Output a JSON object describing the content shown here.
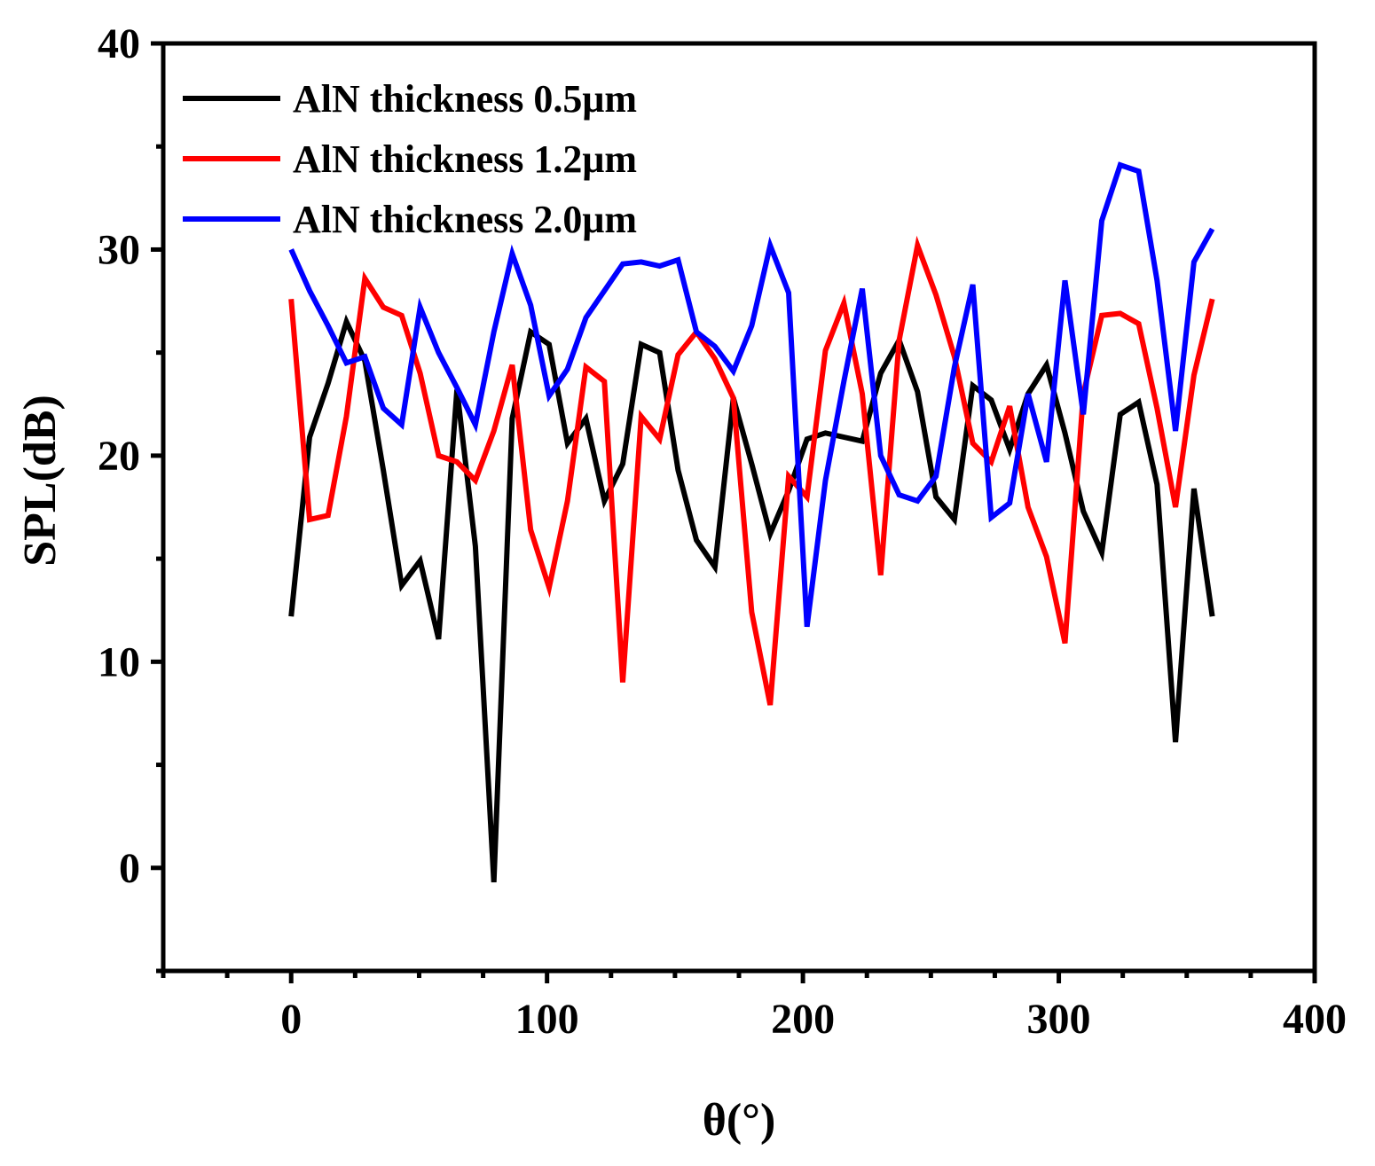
{
  "chart_data": {
    "type": "line",
    "title": "",
    "xlabel": "θ(°)",
    "ylabel": "SPL(dB)",
    "xlim": [
      -50,
      400
    ],
    "ylim": [
      -5,
      40
    ],
    "xticks": [
      0,
      100,
      200,
      300,
      400
    ],
    "yticks": [
      0,
      10,
      20,
      30,
      40
    ],
    "x_tick_labels": [
      "0",
      "100",
      "200",
      "300",
      "400"
    ],
    "y_tick_labels": [
      "0",
      "10",
      "20",
      "30",
      "40"
    ],
    "grid": false,
    "legend_position": "top-left",
    "x": [
      0,
      7.2,
      14.4,
      21.6,
      28.8,
      36,
      43.2,
      50.4,
      57.6,
      64.8,
      72,
      79.2,
      86.4,
      93.6,
      100.8,
      108,
      115.2,
      122.4,
      129.6,
      136.8,
      144,
      151.2,
      158.4,
      165.6,
      172.8,
      180,
      187.2,
      194.4,
      201.6,
      208.8,
      216,
      223.2,
      230.4,
      237.6,
      244.8,
      252,
      259.2,
      266.4,
      273.6,
      280.8,
      288,
      295.2,
      302.4,
      309.6,
      316.8,
      324,
      331.2,
      338.4,
      345.6,
      352.8,
      360
    ],
    "series": [
      {
        "name": "AlN thickness 0.5μm",
        "color": "#000000",
        "values": [
          12.2,
          20.9,
          23.5,
          26.5,
          24.6,
          19.3,
          13.7,
          14.9,
          11.1,
          23.2,
          15.6,
          -0.7,
          21.8,
          26.0,
          25.4,
          20.6,
          21.8,
          17.8,
          19.6,
          25.4,
          25.0,
          19.3,
          15.9,
          14.6,
          22.8,
          19.6,
          16.2,
          18.3,
          20.8,
          21.1,
          20.9,
          20.7,
          24.0,
          25.6,
          23.1,
          18.0,
          16.9,
          23.4,
          22.7,
          20.3,
          23.0,
          24.4,
          21.1,
          17.3,
          15.3,
          22.0,
          22.6,
          18.6,
          6.1,
          18.4,
          12.2
        ]
      },
      {
        "name": "AlN thickness 1.2μm",
        "color": "#ff0000",
        "values": [
          27.6,
          16.9,
          17.1,
          21.9,
          28.6,
          27.2,
          26.8,
          24.0,
          20.0,
          19.7,
          18.8,
          21.2,
          24.4,
          16.4,
          13.6,
          17.8,
          24.3,
          23.6,
          9.0,
          21.9,
          20.8,
          24.9,
          26.0,
          24.7,
          22.8,
          12.4,
          7.9,
          19.0,
          18.0,
          25.1,
          27.4,
          23.0,
          14.2,
          25.6,
          30.2,
          27.8,
          24.8,
          20.6,
          19.7,
          22.4,
          17.5,
          15.1,
          10.9,
          23.0,
          26.8,
          26.9,
          26.4,
          22.3,
          17.5,
          23.9,
          27.6
        ]
      },
      {
        "name": "AlN thickness 2.0μm",
        "color": "#0000ff",
        "values": [
          30.0,
          28.0,
          26.3,
          24.5,
          24.8,
          22.3,
          21.5,
          27.2,
          25.0,
          23.3,
          21.5,
          26.0,
          29.8,
          27.3,
          22.9,
          24.2,
          26.7,
          28.0,
          29.3,
          29.4,
          29.2,
          29.5,
          26.0,
          25.3,
          24.1,
          26.3,
          30.2,
          27.9,
          11.7,
          18.8,
          23.6,
          28.1,
          20.0,
          18.1,
          17.8,
          19.0,
          24.3,
          28.3,
          17.0,
          17.7,
          23.0,
          19.7,
          28.5,
          22.0,
          31.4,
          34.1,
          33.8,
          28.5,
          21.2,
          29.4,
          31.0
        ]
      }
    ]
  }
}
